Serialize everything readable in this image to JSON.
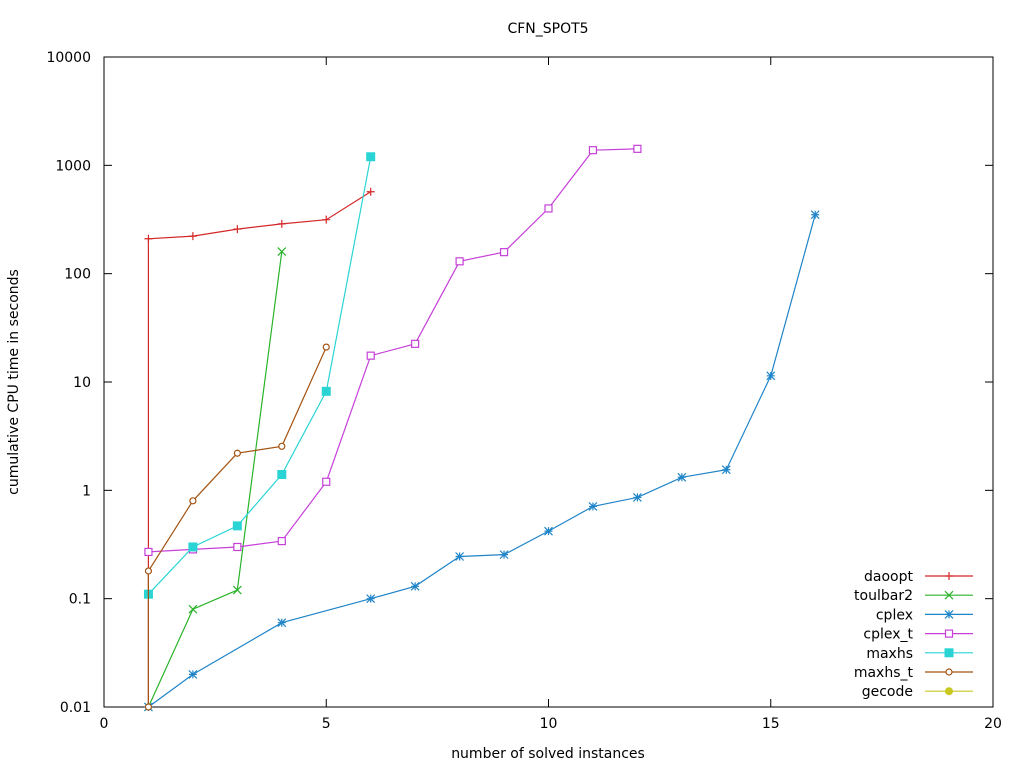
{
  "chart_data": {
    "type": "line",
    "title": "CFN_SPOT5",
    "xlabel": "number of solved instances",
    "ylabel": "cumulative CPU time in seconds",
    "xlim": [
      0,
      20
    ],
    "ylim": [
      0.01,
      10000
    ],
    "yscale": "log",
    "grid": false,
    "legend_position": "bottom-right",
    "x_ticks": [
      0,
      5,
      10,
      15,
      20
    ],
    "x_tick_labels": [
      "0",
      "5",
      "10",
      "15",
      "20"
    ],
    "y_ticks": [
      0.01,
      0.1,
      1,
      10,
      100,
      1000,
      10000
    ],
    "y_tick_labels": [
      "0.01",
      "0.1",
      "1",
      "10",
      "100",
      "1000",
      "10000"
    ],
    "series": [
      {
        "name": "daoopt",
        "color": "#d42828",
        "marker": "plus",
        "x": [
          1,
          1,
          2,
          3,
          4,
          5,
          6
        ],
        "y": [
          0.01,
          210,
          222,
          258,
          288,
          315,
          570
        ]
      },
      {
        "name": "toulbar2",
        "color": "#2ab32a",
        "marker": "cross",
        "x": [
          1,
          2,
          3,
          4
        ],
        "y": [
          0.01,
          0.08,
          0.12,
          160
        ]
      },
      {
        "name": "cplex",
        "color": "#1f84c8",
        "marker": "star",
        "x": [
          1,
          2,
          4,
          6,
          7,
          8,
          9,
          10,
          11,
          12,
          13,
          14,
          15,
          16
        ],
        "y": [
          0.01,
          0.02,
          0.06,
          0.1,
          0.13,
          0.245,
          0.255,
          0.42,
          0.71,
          0.86,
          1.32,
          1.55,
          11.4,
          350
        ]
      },
      {
        "name": "cplex_t",
        "color": "#c640d8",
        "marker": "square-open",
        "x": [
          1,
          2,
          3,
          4,
          5,
          6,
          7,
          8,
          9,
          10,
          11,
          12
        ],
        "y": [
          0.27,
          0.285,
          0.3,
          0.34,
          1.2,
          17.5,
          22.5,
          130,
          158,
          400,
          1380,
          1420
        ]
      },
      {
        "name": "maxhs",
        "color": "#2ad4d4",
        "marker": "square-filled",
        "x": [
          1,
          2,
          3,
          4,
          5,
          6
        ],
        "y": [
          0.11,
          0.3,
          0.47,
          1.4,
          8.2,
          1200
        ]
      },
      {
        "name": "maxhs_t",
        "color": "#a35312",
        "marker": "circle-open",
        "x": [
          1,
          1,
          2,
          3,
          4,
          5
        ],
        "y": [
          0.01,
          0.18,
          0.8,
          2.2,
          2.55,
          21
        ]
      },
      {
        "name": "gecode",
        "color": "#c8c820",
        "marker": "circle-filled",
        "x": [],
        "y": []
      }
    ]
  }
}
